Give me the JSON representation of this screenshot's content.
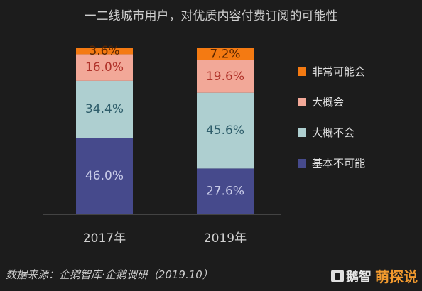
{
  "chart_data": {
    "type": "bar",
    "stacked": true,
    "title": "一二线城市用户，对优质内容付费订阅的可能性",
    "categories": [
      "2017年",
      "2019年"
    ],
    "series": [
      {
        "name": "基本不可能",
        "color": "#464a8c",
        "values": [
          46.0,
          27.6
        ],
        "labels": [
          "46.0%",
          "27.6%"
        ]
      },
      {
        "name": "大概不会",
        "color": "#aecfd0",
        "values": [
          34.4,
          45.6
        ],
        "labels": [
          "34.4%",
          "45.6%"
        ]
      },
      {
        "name": "大概会",
        "color": "#f2a898",
        "values": [
          16.0,
          19.6
        ],
        "labels": [
          "16.0%",
          "19.6%"
        ]
      },
      {
        "name": "非常可能会",
        "color": "#f47a12",
        "values": [
          3.6,
          7.2
        ],
        "labels": [
          "3.6%",
          "7.2%"
        ]
      }
    ],
    "ylim": [
      0,
      100
    ],
    "grid": false,
    "legend_position": "right"
  },
  "source": "数据来源：企鹅智库·企鹅调研（2019.10）",
  "logo": {
    "text": "鹅智",
    "watermark": "萌探说"
  }
}
